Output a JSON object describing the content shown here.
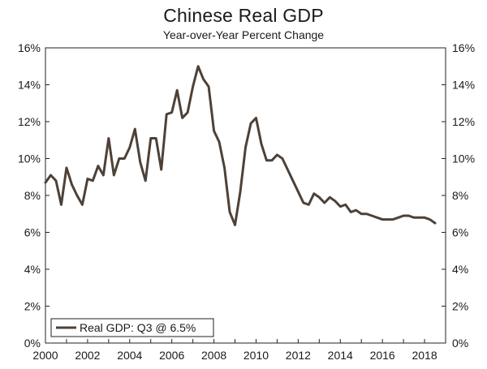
{
  "chart_data": {
    "type": "line",
    "title": "Chinese Real GDP",
    "subtitle": "Year-over-Year Percent Change",
    "xlabel": "",
    "ylabel": "",
    "xlim": [
      2000,
      2019
    ],
    "ylim": [
      0,
      16
    ],
    "x_ticks": [
      "2000",
      "2002",
      "2004",
      "2006",
      "2008",
      "2010",
      "2012",
      "2014",
      "2016",
      "2018"
    ],
    "y_ticks_left": [
      "0%",
      "2%",
      "4%",
      "6%",
      "8%",
      "10%",
      "12%",
      "14%",
      "16%"
    ],
    "y_ticks_right": [
      "0%",
      "2%",
      "4%",
      "6%",
      "8%",
      "10%",
      "12%",
      "14%",
      "16%"
    ],
    "legend_position": "bottom-left",
    "line_color": "#4d4138",
    "series": [
      {
        "name": "Real GDP: Q3 @ 6.5%",
        "x": [
          2000.0,
          2000.25,
          2000.5,
          2000.75,
          2001.0,
          2001.25,
          2001.5,
          2001.75,
          2002.0,
          2002.25,
          2002.5,
          2002.75,
          2003.0,
          2003.25,
          2003.5,
          2003.75,
          2004.0,
          2004.25,
          2004.5,
          2004.75,
          2005.0,
          2005.25,
          2005.5,
          2005.75,
          2006.0,
          2006.25,
          2006.5,
          2006.75,
          2007.0,
          2007.25,
          2007.5,
          2007.75,
          2008.0,
          2008.25,
          2008.5,
          2008.75,
          2009.0,
          2009.25,
          2009.5,
          2009.75,
          2010.0,
          2010.25,
          2010.5,
          2010.75,
          2011.0,
          2011.25,
          2011.5,
          2011.75,
          2012.0,
          2012.25,
          2012.5,
          2012.75,
          2013.0,
          2013.25,
          2013.5,
          2013.75,
          2014.0,
          2014.25,
          2014.5,
          2014.75,
          2015.0,
          2015.25,
          2015.5,
          2015.75,
          2016.0,
          2016.25,
          2016.5,
          2016.75,
          2017.0,
          2017.25,
          2017.5,
          2017.75,
          2018.0,
          2018.25,
          2018.5
        ],
        "values": [
          8.7,
          9.1,
          8.8,
          7.5,
          9.5,
          8.6,
          8.0,
          7.5,
          8.9,
          8.8,
          9.6,
          9.1,
          11.1,
          9.1,
          10.0,
          10.0,
          10.6,
          11.6,
          9.8,
          8.8,
          11.1,
          11.1,
          9.4,
          12.4,
          12.5,
          13.7,
          12.2,
          12.5,
          13.9,
          15.0,
          14.3,
          13.9,
          11.5,
          10.9,
          9.5,
          7.1,
          6.4,
          8.2,
          10.6,
          11.9,
          12.2,
          10.8,
          9.9,
          9.9,
          10.2,
          10.0,
          9.4,
          8.8,
          8.2,
          7.6,
          7.5,
          8.1,
          7.9,
          7.6,
          7.9,
          7.7,
          7.4,
          7.5,
          7.1,
          7.2,
          7.0,
          7.0,
          6.9,
          6.8,
          6.7,
          6.7,
          6.7,
          6.8,
          6.9,
          6.9,
          6.8,
          6.8,
          6.8,
          6.7,
          6.5
        ]
      }
    ]
  }
}
